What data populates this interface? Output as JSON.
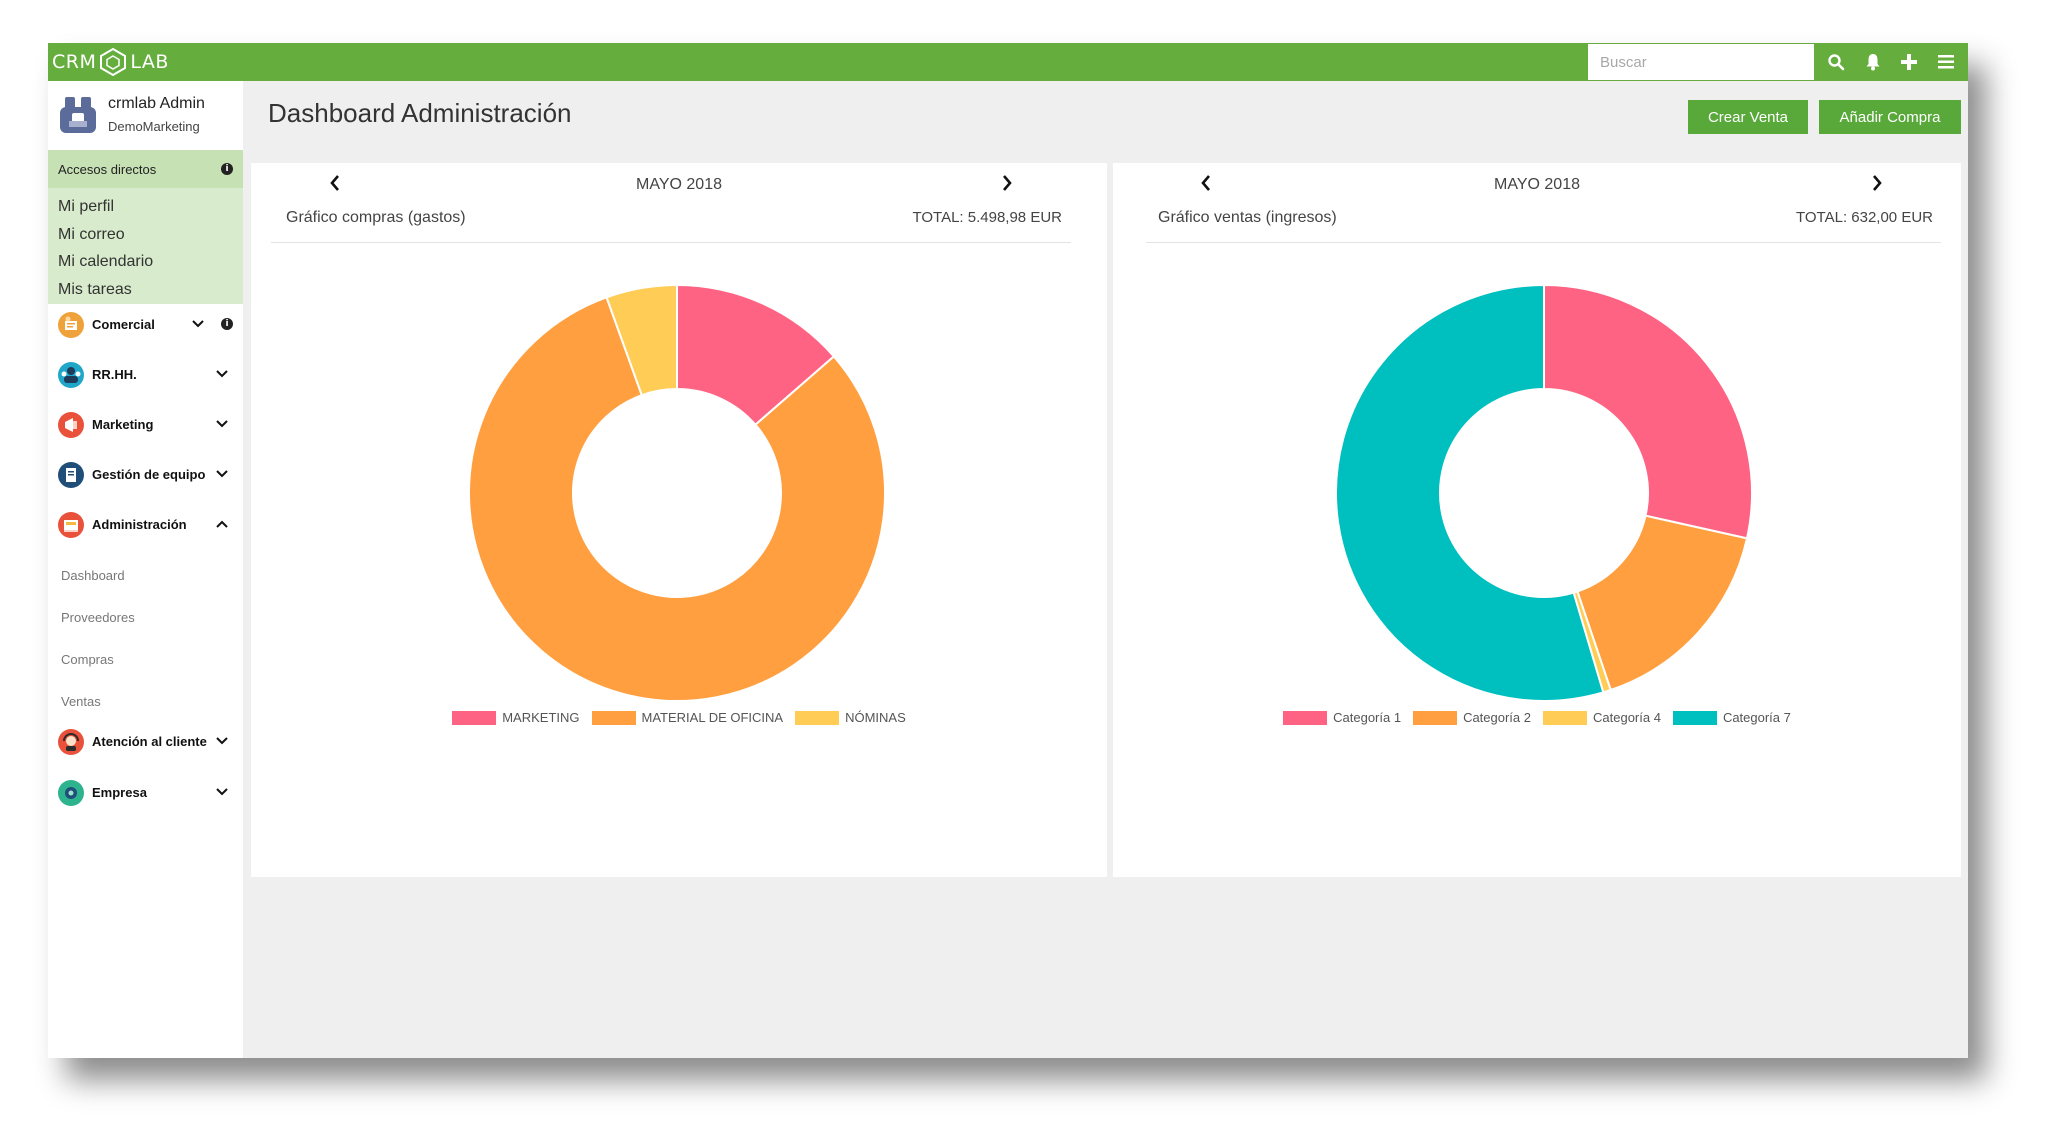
{
  "app": {
    "logo_left": "CRM",
    "logo_right": "LAB"
  },
  "search": {
    "placeholder": "Buscar"
  },
  "toolbar": {
    "icons": [
      "search-icon",
      "bell-icon",
      "plus-icon",
      "menu-icon"
    ]
  },
  "user": {
    "name": "crmlab Admin",
    "org": "DemoMarketing"
  },
  "quick_access": {
    "title": "Accesos directos",
    "links": [
      "Mi perfil",
      "Mi correo",
      "Mi calendario",
      "Mis tareas"
    ]
  },
  "menu": [
    {
      "label": "Comercial",
      "icon": "sales-icon",
      "color": "#f0a23a"
    },
    {
      "label": "RR.HH.",
      "icon": "people-icon",
      "color": "#1ea7c9"
    },
    {
      "label": "Marketing",
      "icon": "megaphone-icon",
      "color": "#e9513b"
    },
    {
      "label": "Gestión de equipo",
      "icon": "document-icon",
      "color": "#1f4e78"
    },
    {
      "label": "Administración",
      "icon": "register-icon",
      "color": "#e9513b"
    },
    {
      "label": "Atención al cliente",
      "icon": "support-icon",
      "color": "#e9513b"
    },
    {
      "label": "Empresa",
      "icon": "company-icon",
      "color": "#2db38e"
    }
  ],
  "admin_submenu": [
    "Dashboard",
    "Proveedores",
    "Compras",
    "Ventas"
  ],
  "page": {
    "title": "Dashboard Administración"
  },
  "buttons": {
    "create_sale": "Crear Venta",
    "add_purchase": "Añadir Compra"
  },
  "panels": [
    {
      "month": "MAYO 2018",
      "title": "Gráfico compras (gastos)",
      "total": "TOTAL: 5.498,98 EUR",
      "chart_data": {
        "type": "pie",
        "categories": [
          "MARKETING",
          "MATERIAL DE OFICINA",
          "NÓMINAS"
        ],
        "values": [
          13.6,
          80.9,
          5.5
        ],
        "colors": [
          "#ff6384",
          "#ff9f40",
          "#ffcd56"
        ],
        "legend": "bottom"
      }
    },
    {
      "month": "MAYO 2018",
      "title": "Gráfico ventas (ingresos)",
      "total": "TOTAL: 632,00 EUR",
      "chart_data": {
        "type": "pie",
        "categories": [
          "Categoría 1",
          "Categoría 2",
          "Categoría 4",
          "Categoría 7"
        ],
        "values": [
          28.5,
          16.3,
          0.6,
          54.6
        ],
        "colors": [
          "#ff6384",
          "#ff9f40",
          "#ffcd56",
          "#00bfbf"
        ],
        "legend": "bottom"
      }
    }
  ]
}
